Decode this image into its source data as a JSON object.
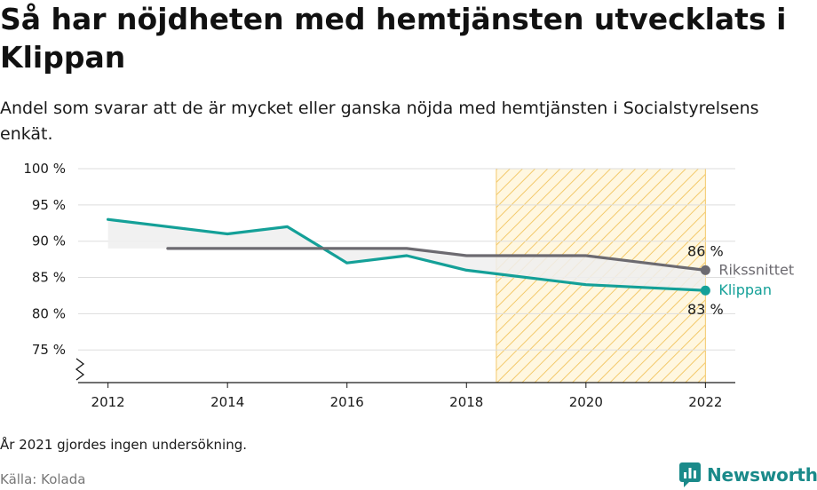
{
  "title": "Så har nöjdheten med hemtjänsten utvecklats i Klippan",
  "subtitle": "Andel som svarar att de är mycket eller ganska nöjda med hemtjänsten i Socialstyrelsens enkät.",
  "note": "År 2021 gjordes ingen undersökning.",
  "source": "Källa: Kolada",
  "brand": {
    "name": "Newsworthy",
    "icon": "newsworthy-logo-icon"
  },
  "chart_data": {
    "type": "line",
    "x": [
      2012,
      2013,
      2014,
      2015,
      2016,
      2017,
      2018,
      2020,
      2022
    ],
    "xticks": [
      2012,
      2014,
      2016,
      2018,
      2020,
      2022
    ],
    "xtick_labels": [
      "2012",
      "2014",
      "2016",
      "2018",
      "2020",
      "2022"
    ],
    "yticks": [
      75,
      80,
      85,
      90,
      95,
      100
    ],
    "ytick_labels": [
      "75 %",
      "80 %",
      "85 %",
      "90 %",
      "95 %",
      "100 %"
    ],
    "xlim": [
      2011.5,
      2022.5
    ],
    "ylim": [
      70.5,
      100
    ],
    "axis_break": true,
    "grid": true,
    "highlight_range": [
      2018.5,
      2022
    ],
    "series": [
      {
        "name": "Klippan",
        "color": "#14a098",
        "x": [
          2012,
          2014,
          2015,
          2016,
          2017,
          2018,
          2020,
          2022
        ],
        "values": [
          93,
          91,
          92,
          87,
          88,
          86,
          84,
          83.2
        ],
        "end_label": "83 %"
      },
      {
        "name": "Rikssnittet",
        "color": "#6c6a70",
        "x": [
          2013,
          2014,
          2015,
          2016,
          2017,
          2018,
          2020,
          2022
        ],
        "values": [
          89,
          89,
          89,
          89,
          89,
          88,
          88,
          86
        ],
        "end_label": "86 %"
      }
    ]
  }
}
